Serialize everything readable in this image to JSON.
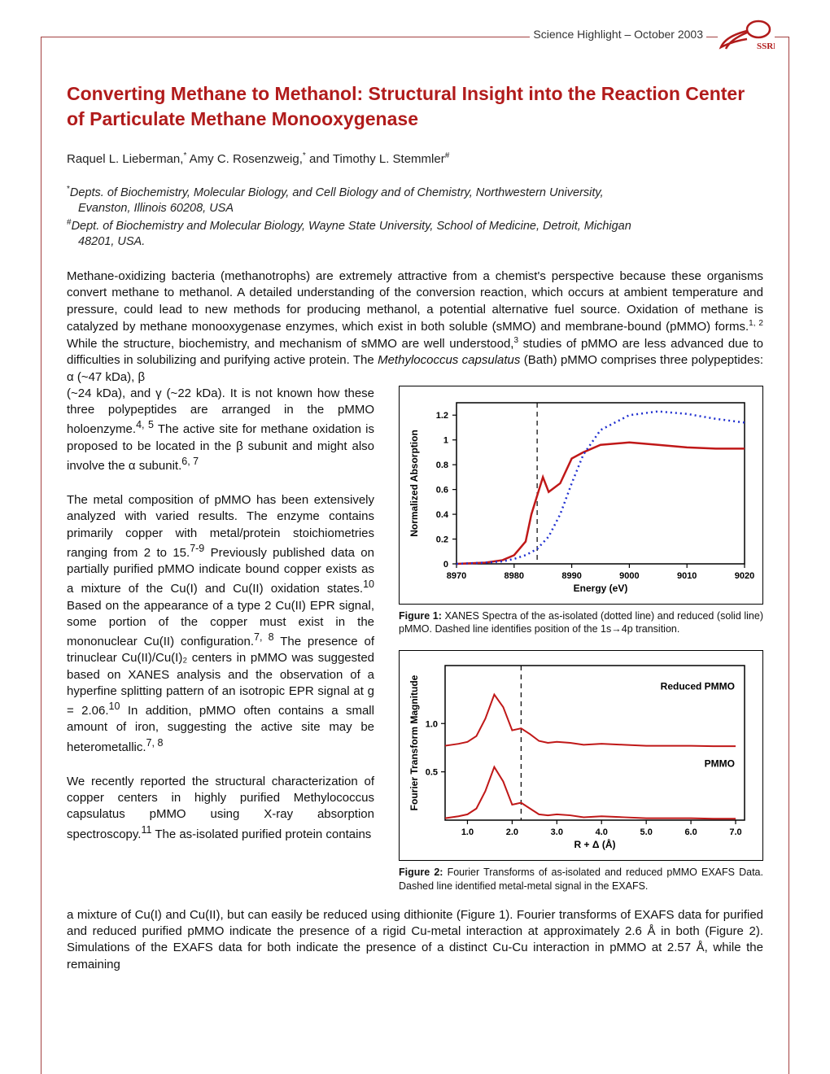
{
  "header": {
    "highlight_text": "Science Highlight – October 2003",
    "logo_label": "SSRL",
    "logo_color": "#b11b1b"
  },
  "title": "Converting Methane to Methanol:  Structural Insight into the Reaction Center of Particulate Methane Monooxygenase",
  "title_color": "#b11b1b",
  "authors_html": "Raquel L. Lieberman,* Amy C. Rosenzweig,* and Timothy L. Stemmler#",
  "affiliations": {
    "line1_sup": "*",
    "line1": "Depts. of Biochemistry, Molecular Biology, and Cell Biology and of Chemistry, Northwestern University,",
    "line1b": "Evanston, Illinois 60208, USA",
    "line2_sup": "#",
    "line2": "Dept. of Biochemistry and Molecular Biology, Wayne State University, School of Medicine, Detroit, Michigan",
    "line2b": "48201, USA."
  },
  "paragraphs": {
    "p1a": "Methane-oxidizing bacteria (methanotrophs) are extremely attractive from a chemist's perspective because these organisms convert methane to methanol.  A detailed understanding of the conversion reaction, which occurs at ambient temperature and pressure, could lead to new methods for producing methanol, a potential alternative fuel source.  Oxidation of methane is catalyzed by methane monooxygenase enzymes, which exist in both soluble (sMMO) and membrane-bound (pMMO) forms.",
    "p1b": " While the structure, biochemistry, and mechanism of sMMO are well understood,",
    "p1c": " studies of pMMO are less advanced due to difficulties in solubilizing and purifying active protein.  The ",
    "p1d": "Methylococcus capsulatus",
    "p1e": " (Bath) pMMO comprises three polypeptides: α (~47 kDa), β",
    "p2": "(~24 kDa), and γ (~22 kDa).  It is not known how these three polypeptides are arranged in the pMMO holoenzyme.",
    "p2b": "  The active site for methane oxidation is proposed to be located in the β subunit and might also involve the α subunit.",
    "p3": "The metal composition of pMMO has been extensively analyzed with varied results.  The enzyme contains primarily copper with metal/protein stoichiometries ranging from 2 to 15.",
    "p3b": "  Previously published data on partially purified pMMO indicate bound copper exists as a mixture of the Cu(I) and Cu(II) oxidation states.",
    "p3c": "  Based on the appearance of a type 2 Cu(II) EPR signal, some portion of the copper must exist in the mononuclear Cu(II) configuration.",
    "p3d": "  The presence of trinuclear Cu(II)/Cu(I)₂ centers in pMMO was suggested based on XANES analysis and the observation of a hyperfine splitting pattern of an isotropic EPR signal at ",
    "p3e": "g",
    "p3f": " = 2.06.",
    "p3g": "  In addition, pMMO often contains a small amount of iron, suggesting the active site may be heterometallic.",
    "p4": "We recently reported the structural characterization of copper centers in highly purified ",
    "p4b": "Methylococcus capsulatus",
    "p4c": " pMMO using X-ray absorption spectroscopy.",
    "p4d": " The as-isolated purified protein contains",
    "p5": "a mixture of Cu(I) and Cu(II), but can easily be reduced using dithionite (Figure 1).  Fourier transforms of EXAFS data for purified and reduced purified pMMO indicate the presence of a rigid Cu-metal interaction at approximately 2.6 Å in both (Figure 2).  Simulations of the EXAFS data for both indicate the presence of a distinct Cu-Cu interaction in pMMO at 2.57 Å, while the remaining"
  },
  "figure1": {
    "type": "line",
    "title": "",
    "xlabel": "Energy (eV)",
    "ylabel": "Normalized Absorption",
    "xlim": [
      8970,
      9020
    ],
    "ylim": [
      0,
      1.3
    ],
    "xtick_step": 10,
    "xticks": [
      8970,
      8980,
      8990,
      9000,
      9010,
      9020
    ],
    "yticks": [
      0,
      0.2,
      0.4,
      0.6,
      0.8,
      1.0,
      1.2
    ],
    "dashed_vline_x": 8984,
    "series": [
      {
        "name": "reduced",
        "color": "#c01818",
        "style": "solid",
        "width": 2.5,
        "x": [
          8970,
          8975,
          8978,
          8980,
          8982,
          8983,
          8984,
          8985,
          8986,
          8988,
          8990,
          8992,
          8995,
          9000,
          9005,
          9010,
          9015,
          9020
        ],
        "y": [
          0.0,
          0.01,
          0.03,
          0.07,
          0.18,
          0.4,
          0.55,
          0.7,
          0.58,
          0.65,
          0.85,
          0.9,
          0.96,
          0.98,
          0.96,
          0.94,
          0.93,
          0.93
        ]
      },
      {
        "name": "as-isolated",
        "color": "#2030d0",
        "style": "dotted",
        "width": 2.5,
        "x": [
          8970,
          8975,
          8978,
          8980,
          8982,
          8984,
          8986,
          8988,
          8990,
          8992,
          8995,
          9000,
          9005,
          9010,
          9015,
          9020
        ],
        "y": [
          0.0,
          0.01,
          0.02,
          0.04,
          0.07,
          0.12,
          0.22,
          0.4,
          0.65,
          0.88,
          1.08,
          1.2,
          1.23,
          1.21,
          1.17,
          1.14
        ]
      }
    ],
    "caption_bold": "Figure 1:",
    "caption": " XANES Spectra of the as-isolated (dotted line) and reduced (solid line) pMMO.  Dashed line identifies position of the 1s→4p transition."
  },
  "figure2": {
    "type": "line",
    "xlabel": "R + Δ (Å)",
    "ylabel": "Fourier Transform Magnitude",
    "xlim": [
      0.5,
      7.2
    ],
    "ylim": [
      0,
      1.6
    ],
    "xticks": [
      1.0,
      2.0,
      3.0,
      4.0,
      5.0,
      6.0,
      7.0
    ],
    "yticks": [
      0.5,
      1.0
    ],
    "dashed_vline_x": 2.2,
    "legend_items": [
      "Reduced PMMO",
      "PMMO"
    ],
    "series": [
      {
        "name": "Reduced PMMO",
        "color": "#c01818",
        "width": 2,
        "y_offset": 0.75,
        "x": [
          0.5,
          0.8,
          1.0,
          1.2,
          1.4,
          1.6,
          1.8,
          2.0,
          2.2,
          2.4,
          2.6,
          2.8,
          3.0,
          3.3,
          3.6,
          4.0,
          4.5,
          5.0,
          5.5,
          6.0,
          6.5,
          7.0
        ],
        "y": [
          0.02,
          0.04,
          0.06,
          0.12,
          0.3,
          0.55,
          0.42,
          0.18,
          0.2,
          0.14,
          0.07,
          0.05,
          0.06,
          0.05,
          0.03,
          0.04,
          0.03,
          0.02,
          0.02,
          0.02,
          0.015,
          0.015
        ]
      },
      {
        "name": "PMMO",
        "color": "#c01818",
        "width": 2,
        "y_offset": 0.0,
        "x": [
          0.5,
          0.8,
          1.0,
          1.2,
          1.4,
          1.6,
          1.8,
          2.0,
          2.2,
          2.4,
          2.6,
          2.8,
          3.0,
          3.3,
          3.6,
          4.0,
          4.5,
          5.0,
          5.5,
          6.0,
          6.5,
          7.0
        ],
        "y": [
          0.02,
          0.04,
          0.06,
          0.12,
          0.3,
          0.55,
          0.4,
          0.16,
          0.18,
          0.12,
          0.06,
          0.05,
          0.06,
          0.05,
          0.03,
          0.04,
          0.03,
          0.02,
          0.02,
          0.02,
          0.015,
          0.015
        ]
      }
    ],
    "caption_bold": "Figure 2:",
    "caption": " Fourier Transforms of as-isolated and reduced pMMO EXAFS Data.  Dashed line identified metal-metal signal in the EXAFS."
  },
  "frame_border_color": "#a34040"
}
